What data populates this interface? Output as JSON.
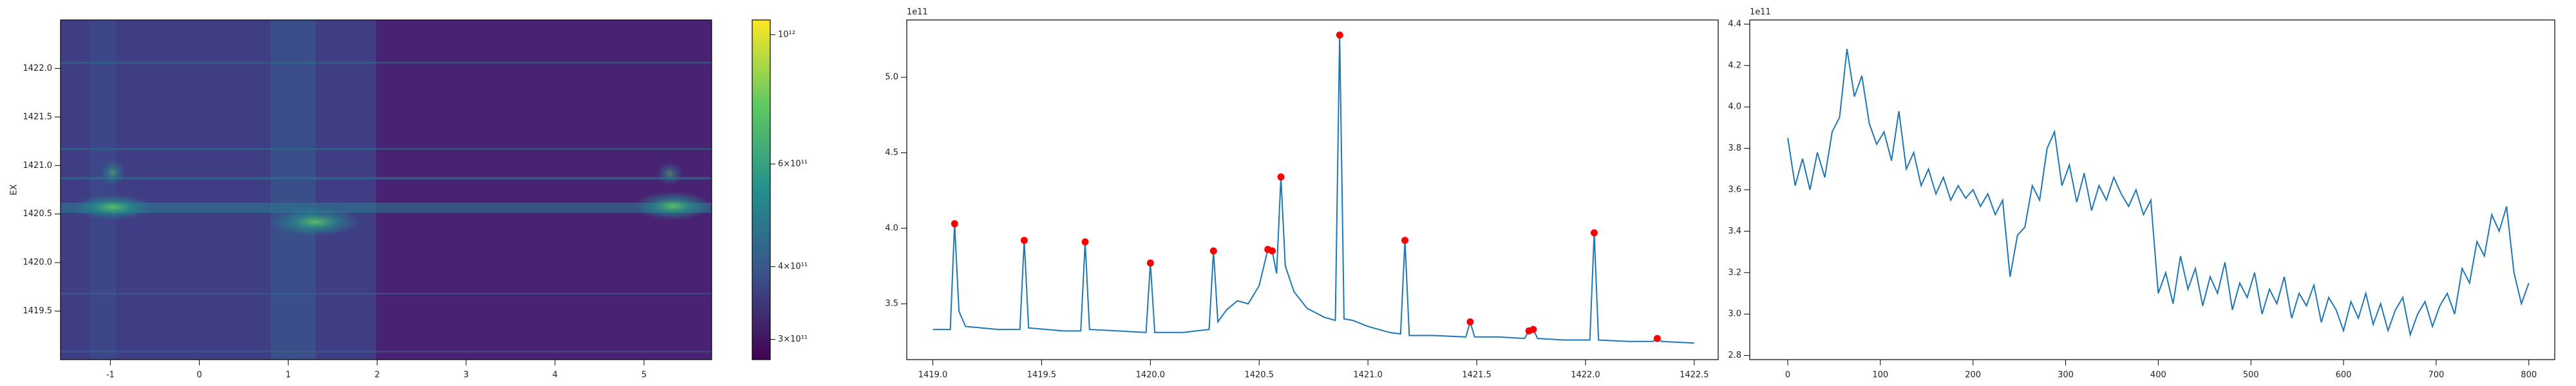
{
  "chart_data": [
    {
      "type": "heatmap",
      "ylabel": "EX",
      "xlim": [
        -1.56,
        5.76
      ],
      "xticks": [
        -1,
        0,
        1,
        2,
        3,
        4,
        5
      ],
      "ylim": [
        1419.0,
        1422.5
      ],
      "yticks": [
        1419.5,
        {
          "value": 1420,
          "label": "1420.0"
        },
        1420.5,
        {
          "value": 1421,
          "label": "1421.0"
        },
        1421.5,
        {
          "value": 1422,
          "label": "1422.0"
        }
      ],
      "colorbar": {
        "scale": "log",
        "clim": [
          277000000000,
          1060000000000
        ],
        "ticks": [
          {
            "value": 300000000000,
            "label": "3×10¹¹"
          },
          {
            "value": 400000000000,
            "label": "4×10¹¹"
          },
          {
            "value": 600000000000,
            "label": "6×10¹¹"
          },
          {
            "value": 1000000000000,
            "label": "10¹²"
          }
        ]
      }
    },
    {
      "type": "line",
      "offset_label": "1e11",
      "color": "#1f77b4",
      "xlim": [
        1418.88,
        1422.61
      ],
      "xticks": [
        {
          "value": 1419,
          "label": "1419.0"
        },
        1419.5,
        {
          "value": 1420,
          "label": "1420.0"
        },
        1420.5,
        {
          "value": 1421,
          "label": "1421.0"
        },
        1421.5,
        {
          "value": 1422,
          "label": "1422.0"
        },
        1422.5
      ],
      "ylim": [
        3.13,
        5.38
      ],
      "yticks": [
        3.5,
        {
          "value": 4,
          "label": "4.0"
        },
        4.5,
        {
          "value": 5,
          "label": "5.0"
        }
      ],
      "x": [
        1419.0,
        1419.08,
        1419.1,
        1419.12,
        1419.15,
        1419.3,
        1419.4,
        1419.42,
        1419.44,
        1419.6,
        1419.68,
        1419.7,
        1419.72,
        1419.85,
        1419.98,
        1420.0,
        1420.02,
        1420.15,
        1420.27,
        1420.29,
        1420.31,
        1420.35,
        1420.4,
        1420.45,
        1420.5,
        1420.54,
        1420.56,
        1420.58,
        1420.6,
        1420.62,
        1420.66,
        1420.72,
        1420.8,
        1420.85,
        1420.87,
        1420.89,
        1420.93,
        1421.0,
        1421.1,
        1421.15,
        1421.17,
        1421.19,
        1421.3,
        1421.45,
        1421.47,
        1421.49,
        1421.6,
        1421.72,
        1421.74,
        1421.76,
        1421.78,
        1421.9,
        1422.02,
        1422.04,
        1422.06,
        1422.2,
        1422.31,
        1422.33,
        1422.35,
        1422.5
      ],
      "values": [
        3.33,
        3.33,
        4.03,
        3.45,
        3.35,
        3.33,
        3.33,
        3.92,
        3.34,
        3.32,
        3.32,
        3.91,
        3.33,
        3.32,
        3.31,
        3.77,
        3.31,
        3.31,
        3.33,
        3.85,
        3.38,
        3.46,
        3.52,
        3.5,
        3.62,
        3.86,
        3.85,
        3.7,
        4.34,
        3.75,
        3.58,
        3.47,
        3.41,
        3.39,
        5.28,
        3.4,
        3.39,
        3.35,
        3.31,
        3.3,
        3.92,
        3.29,
        3.29,
        3.28,
        3.38,
        3.28,
        3.28,
        3.27,
        3.32,
        3.33,
        3.27,
        3.26,
        3.26,
        3.97,
        3.26,
        3.25,
        3.25,
        3.27,
        3.25,
        3.24
      ],
      "markers": {
        "color": "#ff0000",
        "x": [
          1419.1,
          1419.42,
          1419.7,
          1420.0,
          1420.29,
          1420.54,
          1420.56,
          1420.6,
          1420.87,
          1421.17,
          1421.47,
          1421.74,
          1421.76,
          1422.04,
          1422.33
        ],
        "values": [
          4.03,
          3.92,
          3.91,
          3.77,
          3.85,
          3.86,
          3.85,
          4.34,
          5.28,
          3.92,
          3.38,
          3.32,
          3.33,
          3.97,
          3.27
        ]
      }
    },
    {
      "type": "line",
      "offset_label": "1e11",
      "color": "#1f77b4",
      "xlim": [
        -41,
        828
      ],
      "xticks": [
        0,
        100,
        200,
        300,
        400,
        500,
        600,
        700,
        800
      ],
      "ylim": [
        2.78,
        4.42
      ],
      "yticks": [
        2.8,
        {
          "value": 3,
          "label": "3.0"
        },
        3.2,
        3.4,
        3.6,
        3.8,
        {
          "value": 4,
          "label": "4.0"
        },
        4.2,
        4.4
      ],
      "x": [
        0,
        8,
        16,
        24,
        32,
        40,
        48,
        56,
        64,
        72,
        80,
        88,
        96,
        104,
        112,
        120,
        128,
        136,
        144,
        152,
        160,
        168,
        176,
        184,
        192,
        200,
        208,
        216,
        224,
        232,
        240,
        248,
        256,
        264,
        272,
        280,
        288,
        296,
        304,
        312,
        320,
        328,
        336,
        344,
        352,
        360,
        368,
        376,
        384,
        392,
        400,
        408,
        416,
        424,
        432,
        440,
        448,
        456,
        464,
        472,
        480,
        488,
        496,
        504,
        512,
        520,
        528,
        536,
        544,
        552,
        560,
        568,
        576,
        584,
        592,
        600,
        608,
        616,
        624,
        632,
        640,
        648,
        656,
        664,
        672,
        680,
        688,
        696,
        704,
        712,
        720,
        728,
        736,
        744,
        752,
        760,
        768,
        776,
        784,
        792,
        800
      ],
      "values": [
        3.85,
        3.62,
        3.75,
        3.6,
        3.78,
        3.66,
        3.88,
        3.95,
        4.28,
        4.05,
        4.15,
        3.92,
        3.82,
        3.88,
        3.74,
        3.98,
        3.7,
        3.78,
        3.62,
        3.7,
        3.58,
        3.66,
        3.55,
        3.62,
        3.56,
        3.6,
        3.52,
        3.58,
        3.48,
        3.55,
        3.18,
        3.38,
        3.42,
        3.62,
        3.55,
        3.8,
        3.88,
        3.62,
        3.72,
        3.54,
        3.68,
        3.5,
        3.62,
        3.55,
        3.66,
        3.58,
        3.52,
        3.6,
        3.48,
        3.55,
        3.1,
        3.2,
        3.05,
        3.28,
        3.12,
        3.22,
        3.04,
        3.18,
        3.1,
        3.25,
        3.02,
        3.15,
        3.08,
        3.2,
        3.0,
        3.12,
        3.05,
        3.18,
        2.98,
        3.1,
        3.04,
        3.14,
        2.96,
        3.08,
        3.02,
        2.92,
        3.06,
        2.98,
        3.1,
        2.95,
        3.05,
        2.92,
        3.02,
        3.08,
        2.9,
        3.0,
        3.06,
        2.94,
        3.04,
        3.1,
        3.0,
        3.22,
        3.15,
        3.35,
        3.28,
        3.48,
        3.4,
        3.52,
        3.2,
        3.05,
        3.15
      ]
    }
  ]
}
